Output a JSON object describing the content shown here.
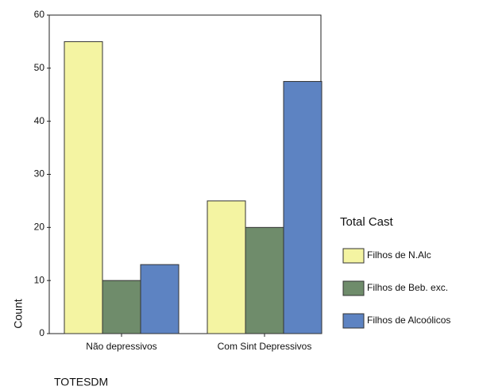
{
  "chart_data": {
    "type": "bar",
    "categories": [
      "Não depressivos",
      "Com Sint Depressivos"
    ],
    "series": [
      {
        "name": "Filhos de N.Alc",
        "color": "#f4f4a2",
        "values": [
          55,
          25
        ]
      },
      {
        "name": "Filhos de Beb. exc.",
        "color": "#6f8c6b",
        "values": [
          10,
          20
        ]
      },
      {
        "name": "Filhos de Alcoólicos",
        "color": "#5d83c2",
        "values": [
          13,
          47.5
        ]
      }
    ],
    "ylim": [
      0,
      60
    ],
    "yticks": [
      0,
      10,
      20,
      30,
      40,
      50,
      60
    ],
    "ylabel": "Count",
    "xlabel": "TOTESDM",
    "legend_title": "Total Cast",
    "legend": "right"
  }
}
